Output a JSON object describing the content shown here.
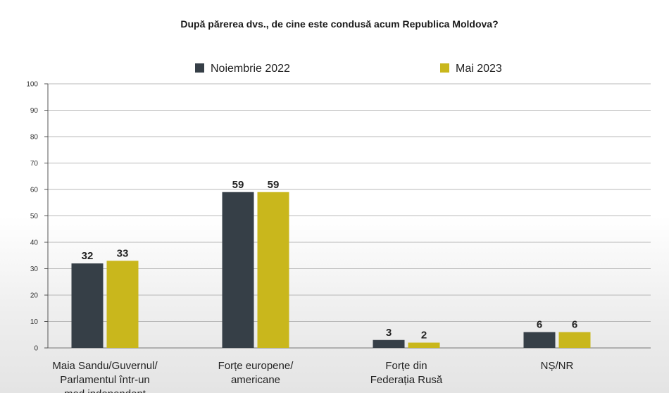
{
  "chart_data": {
    "type": "bar",
    "title": "După părerea dvs., de cine este condusă acum Republica Moldova?",
    "categories": [
      [
        "Maia Sandu/Guvernul/",
        "Parlamentul într-un",
        "mod independent"
      ],
      [
        "Forțe europene/",
        "americane"
      ],
      [
        "Forțe din",
        "Federația Rusă"
      ],
      [
        "NȘ/NR"
      ]
    ],
    "series": [
      {
        "name": "Noiembrie 2022",
        "color": "#363f47",
        "values": [
          32,
          59,
          3,
          6
        ]
      },
      {
        "name": "Mai 2023",
        "color": "#c9b71c",
        "values": [
          33,
          59,
          2,
          6
        ]
      }
    ],
    "ylim": [
      0,
      100
    ],
    "yticks": [
      0,
      10,
      20,
      30,
      40,
      50,
      60,
      70,
      80,
      90,
      100
    ],
    "grid": true,
    "legend": "top-center",
    "xlabel": "",
    "ylabel": ""
  }
}
